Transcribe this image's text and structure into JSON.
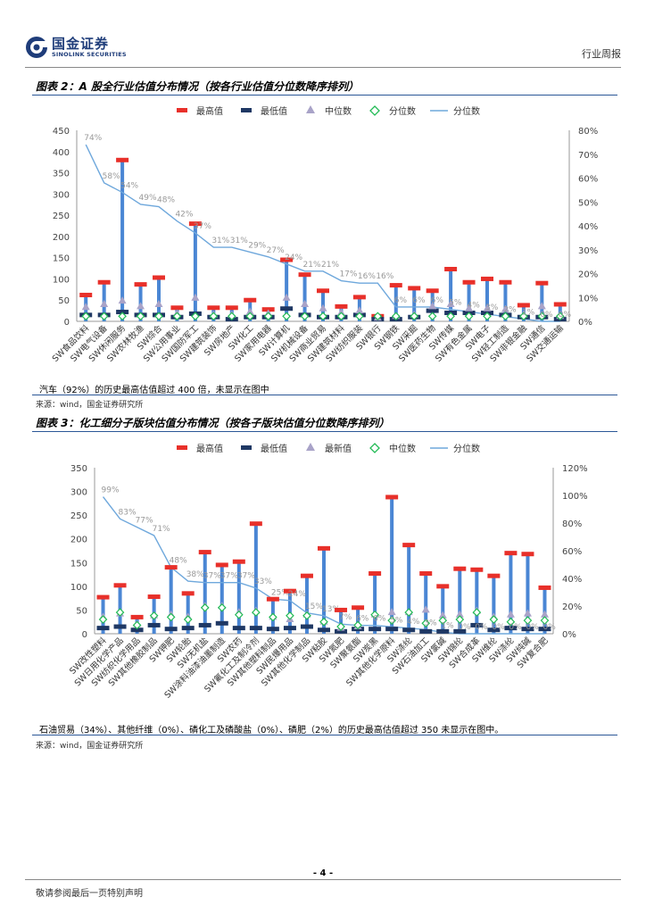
{
  "header": {
    "logo_cn": "国金证券",
    "logo_en": "SINOLINK SECURITIES",
    "right": "行业周报"
  },
  "colors": {
    "max": "#e8302a",
    "min": "#1f3864",
    "median": "#a9a3c8",
    "pct": "#22bb55",
    "line": "#6fa8dc",
    "bar": "#4a86d4",
    "axis": "#555555"
  },
  "fig2": {
    "title": "图表 2：A 股全行业估值分布情况（按各行业估值分位数降序排列）",
    "note": "汽车（92%）的历史最高估值超过 400 倍，未显示在图中",
    "source": "来源：wind，国金证券研究所",
    "legend": [
      "最高值",
      "最低值",
      "中位数",
      "分位数",
      "分位数"
    ]
  },
  "fig3": {
    "title": "图表 3：化工细分子版块估值分布情况（按各子版块估值分位数降序排列）",
    "note": "石油贸易（34%）、其他纤维（0%）、磷化工及磷酸盐（0%）、磷肥（2%）的历史最高估值超过 350 未显示在图中。",
    "source": "来源：wind，国金证券研究所",
    "legend": [
      "最高值",
      "最低值",
      "最新值",
      "中位数",
      "分位数"
    ]
  },
  "footer": {
    "page": "- 4 -",
    "text": "敬请参阅最后一页特别声明"
  },
  "chart_data": [
    {
      "type": "bar",
      "title": "A 股全行业估值分布情况（按各行业估值分位数降序排列）",
      "categories": [
        "SW食品饮料",
        "SW电气设备",
        "SW休闲服务",
        "SW农林牧渔",
        "SW综合",
        "SW公用事业",
        "SW国防军工",
        "SW建筑装饰",
        "SW房地产",
        "SW化工",
        "SW家用电器",
        "SW计算机",
        "SW机械设备",
        "SW商业贸易",
        "SW建筑材料",
        "SW纺织服装",
        "SW银行",
        "SW钢铁",
        "SW采掘",
        "SW医药生物",
        "SW传媒",
        "SW有色金属",
        "SW电子",
        "SW轻工制造",
        "SW非银金融",
        "SW通信",
        "SW交通运输"
      ],
      "ylim": [
        0,
        450
      ],
      "yticks": [
        0,
        50,
        100,
        150,
        200,
        250,
        300,
        350,
        400,
        450
      ],
      "y2lim": [
        0,
        0.8
      ],
      "y2ticks": [
        "0%",
        "10%",
        "20%",
        "30%",
        "40%",
        "50%",
        "60%",
        "70%",
        "80%"
      ],
      "series": [
        {
          "name": "最高值",
          "values": [
            62,
            92,
            380,
            87,
            103,
            32,
            230,
            32,
            32,
            50,
            28,
            145,
            110,
            72,
            35,
            57,
            12,
            85,
            78,
            72,
            123,
            92,
            100,
            92,
            38,
            90,
            40
          ]
        },
        {
          "name": "最低值",
          "values": [
            15,
            15,
            22,
            15,
            15,
            10,
            18,
            10,
            5,
            10,
            10,
            30,
            15,
            10,
            10,
            15,
            5,
            5,
            10,
            25,
            20,
            20,
            20,
            15,
            10,
            10,
            5
          ]
        },
        {
          "name": "中位数",
          "values": [
            33,
            40,
            48,
            35,
            40,
            18,
            55,
            15,
            15,
            22,
            18,
            55,
            40,
            30,
            20,
            25,
            8,
            12,
            15,
            35,
            40,
            30,
            30,
            28,
            15,
            35,
            12
          ]
        },
        {
          "name": "分位数",
          "values": [
            12,
            12,
            12,
            12,
            12,
            12,
            12,
            12,
            12,
            12,
            12,
            12,
            12,
            12,
            12,
            12,
            12,
            12,
            12,
            12,
            12,
            12,
            12,
            12,
            12,
            12,
            12
          ]
        },
        {
          "name": "分位数(折线)",
          "values": [
            0.74,
            0.58,
            0.54,
            0.49,
            0.48,
            0.42,
            0.37,
            0.31,
            0.31,
            0.29,
            0.27,
            0.24,
            0.21,
            0.21,
            0.17,
            0.16,
            0.16,
            0.06,
            0.06,
            0.06,
            0.05,
            0.04,
            0.03,
            0.02,
            0.01,
            0.0,
            0.0
          ]
        }
      ],
      "pct_labels": [
        "74%",
        "58%",
        "54%",
        "49%",
        "48%",
        "42%",
        "37%",
        "31%",
        "31%",
        "29%",
        "27%",
        "24%",
        "21%",
        "21%",
        "17%",
        "16%",
        "16%",
        "6%",
        "6%",
        "6%",
        "5%",
        "4%",
        "3%",
        "2%",
        "1%",
        "0%",
        "0%"
      ]
    },
    {
      "type": "bar",
      "title": "化工细分子版块估值分布情况（按各子版块估值分位数降序排列）",
      "categories": [
        "SW改性塑料",
        "SW日用化学产品",
        "SW纺织化学用品",
        "SW其他橡胶制品",
        "SW钾肥",
        "SW轮胎",
        "SW无机盐",
        "SW涂料油漆油墨制造",
        "SW农药",
        "SW氟化工及制冷剂",
        "SW其他塑料制品",
        "SW民爆用品",
        "SW其他化学制品",
        "SW粘胶",
        "SW氮肥",
        "SW聚氨酯",
        "SW炭黑",
        "SW其他化学原料",
        "SW涤纶",
        "SW石油加工",
        "SW氯碱",
        "SW锦纶",
        "SW合成革",
        "SW维纶",
        "SW涤纶",
        "SW纯碱",
        "SW复合肥"
      ],
      "ylim": [
        0,
        350
      ],
      "yticks": [
        0,
        50,
        100,
        150,
        200,
        250,
        300,
        350
      ],
      "y2lim": [
        0,
        1.2
      ],
      "y2ticks": [
        "0%",
        "20%",
        "40%",
        "60%",
        "80%",
        "100%",
        "120%"
      ],
      "series": [
        {
          "name": "最高值",
          "values": [
            77,
            102,
            35,
            78,
            140,
            85,
            172,
            145,
            152,
            232,
            73,
            90,
            122,
            180,
            50,
            55,
            127,
            288,
            187,
            127,
            100,
            137,
            135,
            122,
            170,
            168,
            97
          ]
        },
        {
          "name": "最低值",
          "values": [
            12,
            15,
            8,
            18,
            10,
            12,
            18,
            22,
            12,
            12,
            10,
            12,
            15,
            8,
            5,
            10,
            10,
            10,
            8,
            5,
            5,
            5,
            18,
            8,
            12,
            10,
            10
          ]
        },
        {
          "name": "最新值",
          "values": [
            35,
            42,
            20,
            38,
            40,
            35,
            58,
            58,
            45,
            48,
            35,
            30,
            40,
            25,
            12,
            15,
            40,
            45,
            45,
            50,
            38,
            40,
            48,
            35,
            40,
            42,
            40
          ]
        },
        {
          "name": "中位数",
          "values": [
            30,
            45,
            18,
            38,
            35,
            30,
            55,
            55,
            40,
            45,
            35,
            38,
            38,
            25,
            15,
            18,
            40,
            28,
            45,
            22,
            28,
            30,
            45,
            30,
            25,
            28,
            28
          ]
        },
        {
          "name": "分位数",
          "values": [
            0.99,
            0.83,
            0.77,
            0.71,
            0.48,
            0.38,
            0.37,
            0.37,
            0.37,
            0.33,
            0.25,
            0.24,
            0.15,
            0.13,
            0.07,
            0.06,
            0.06,
            0.05,
            0.04,
            0.03,
            0.01,
            0.0,
            0.0,
            0.0,
            0.0,
            0.0,
            0.0
          ]
        }
      ],
      "pct_labels": [
        "99%",
        "83%",
        "77%",
        "71%",
        "48%",
        "38%",
        "37%",
        "37%",
        "37%",
        "33%",
        "25%",
        "24%",
        "15%",
        "13%",
        "7%",
        "6%",
        "6%",
        "5%",
        "4%",
        "3%",
        "1%",
        "0%",
        "0%",
        "0%",
        "0%",
        "0%",
        "0%"
      ]
    }
  ]
}
